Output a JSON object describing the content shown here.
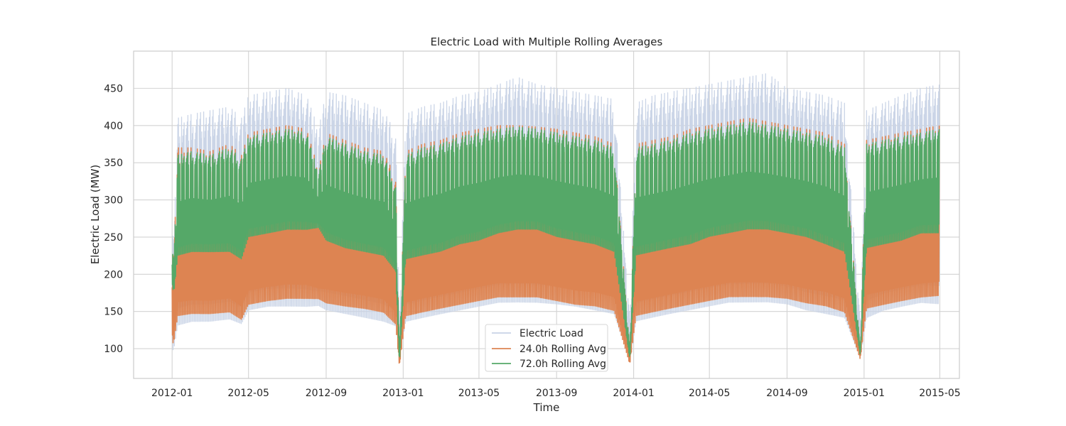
{
  "chart_data": {
    "type": "line",
    "title": "Electric Load with Multiple Rolling Averages",
    "xlabel": "Time",
    "ylabel": "Electric Load (MW)",
    "x_range": [
      "2011-11-01",
      "2015-06-01"
    ],
    "x_ticks": [
      "2012-01",
      "2012-05",
      "2012-09",
      "2013-01",
      "2013-05",
      "2013-09",
      "2014-01",
      "2014-05",
      "2014-09",
      "2015-01",
      "2015-05"
    ],
    "ylim": [
      60,
      500
    ],
    "y_ticks": [
      100,
      150,
      200,
      250,
      300,
      350,
      400,
      450
    ],
    "grid": true,
    "legend_position": "bottom-center",
    "series": [
      {
        "name": "Electric Load",
        "color": "#c8d3e6",
        "envelope": {
          "dates": [
            "2012-01-01",
            "2012-01-04",
            "2012-01-10",
            "2012-02-01",
            "2012-03-01",
            "2012-04-01",
            "2012-04-20",
            "2012-05-01",
            "2012-06-01",
            "2012-07-01",
            "2012-08-01",
            "2012-08-20",
            "2012-09-01",
            "2012-10-01",
            "2012-11-01",
            "2012-12-01",
            "2012-12-20",
            "2012-12-26",
            "2013-01-05",
            "2013-02-01",
            "2013-03-01",
            "2013-04-01",
            "2013-05-01",
            "2013-06-01",
            "2013-07-01",
            "2013-08-01",
            "2013-09-01",
            "2013-10-01",
            "2013-11-01",
            "2013-12-01",
            "2013-12-26",
            "2014-01-05",
            "2014-02-01",
            "2014-03-01",
            "2014-04-01",
            "2014-05-01",
            "2014-06-01",
            "2014-07-01",
            "2014-08-01",
            "2014-09-01",
            "2014-10-01",
            "2014-11-01",
            "2014-12-01",
            "2014-12-26",
            "2015-01-05",
            "2015-02-01",
            "2015-03-01",
            "2015-04-01",
            "2015-04-30"
          ],
          "max": [
            285,
            250,
            410,
            415,
            420,
            425,
            410,
            440,
            445,
            450,
            440,
            395,
            445,
            440,
            430,
            420,
            390,
            130,
            415,
            425,
            430,
            440,
            445,
            455,
            465,
            455,
            450,
            445,
            440,
            435,
            140,
            430,
            440,
            445,
            450,
            455,
            460,
            465,
            470,
            450,
            445,
            440,
            430,
            140,
            420,
            430,
            440,
            450,
            455
          ],
          "min": [
            88,
            95,
            120,
            125,
            125,
            128,
            122,
            140,
            145,
            145,
            145,
            148,
            140,
            135,
            130,
            125,
            120,
            82,
            125,
            130,
            135,
            140,
            145,
            150,
            150,
            150,
            148,
            145,
            140,
            135,
            80,
            125,
            130,
            135,
            140,
            145,
            150,
            150,
            150,
            148,
            140,
            135,
            130,
            85,
            130,
            140,
            145,
            150,
            148
          ]
        }
      },
      {
        "name": "24.0h Rolling Avg",
        "color": "#dd8452",
        "envelope": {
          "dates": [
            "2012-01-01",
            "2012-01-04",
            "2012-01-10",
            "2012-02-01",
            "2012-03-01",
            "2012-04-01",
            "2012-04-20",
            "2012-05-01",
            "2012-06-01",
            "2012-07-01",
            "2012-08-01",
            "2012-08-20",
            "2012-09-01",
            "2012-10-01",
            "2012-11-01",
            "2012-12-01",
            "2012-12-20",
            "2012-12-26",
            "2013-01-05",
            "2013-02-01",
            "2013-03-01",
            "2013-04-01",
            "2013-05-01",
            "2013-06-01",
            "2013-07-01",
            "2013-08-01",
            "2013-09-01",
            "2013-10-01",
            "2013-11-01",
            "2013-12-01",
            "2013-12-26",
            "2014-01-05",
            "2014-02-01",
            "2014-03-01",
            "2014-04-01",
            "2014-05-01",
            "2014-06-01",
            "2014-07-01",
            "2014-08-01",
            "2014-09-01",
            "2014-10-01",
            "2014-11-01",
            "2014-12-01",
            "2014-12-26",
            "2015-01-05",
            "2015-02-01",
            "2015-03-01",
            "2015-04-01",
            "2015-04-30"
          ],
          "max": [
            250,
            230,
            370,
            370,
            365,
            375,
            360,
            390,
            395,
            400,
            395,
            340,
            390,
            380,
            370,
            365,
            330,
            95,
            365,
            375,
            380,
            390,
            395,
            400,
            400,
            398,
            395,
            390,
            385,
            375,
            100,
            375,
            380,
            385,
            395,
            400,
            405,
            410,
            405,
            400,
            395,
            390,
            375,
            100,
            380,
            385,
            390,
            395,
            400
          ],
          "min": [
            100,
            105,
            135,
            138,
            138,
            140,
            130,
            150,
            155,
            158,
            158,
            160,
            152,
            148,
            145,
            140,
            125,
            75,
            135,
            140,
            145,
            150,
            155,
            160,
            160,
            160,
            155,
            150,
            148,
            142,
            78,
            135,
            140,
            145,
            150,
            155,
            160,
            160,
            160,
            158,
            152,
            148,
            140,
            85,
            145,
            150,
            155,
            160,
            162
          ]
        }
      },
      {
        "name": "72.0h Rolling Avg",
        "color": "#55a868",
        "envelope": {
          "dates": [
            "2012-01-01",
            "2012-01-04",
            "2012-01-10",
            "2012-02-01",
            "2012-03-01",
            "2012-04-01",
            "2012-04-20",
            "2012-05-01",
            "2012-06-01",
            "2012-07-01",
            "2012-08-01",
            "2012-08-20",
            "2012-09-01",
            "2012-10-01",
            "2012-11-01",
            "2012-12-01",
            "2012-12-20",
            "2012-12-26",
            "2013-01-05",
            "2013-02-01",
            "2013-03-01",
            "2013-04-01",
            "2013-05-01",
            "2013-06-01",
            "2013-07-01",
            "2013-08-01",
            "2013-09-01",
            "2013-10-01",
            "2013-11-01",
            "2013-12-01",
            "2013-12-26",
            "2014-01-05",
            "2014-02-01",
            "2014-03-01",
            "2014-04-01",
            "2014-05-01",
            "2014-06-01",
            "2014-07-01",
            "2014-08-01",
            "2014-09-01",
            "2014-10-01",
            "2014-11-01",
            "2014-12-01",
            "2014-12-26",
            "2015-01-05",
            "2015-02-01",
            "2015-03-01",
            "2015-04-01",
            "2015-04-30"
          ],
          "max": [
            240,
            220,
            360,
            365,
            360,
            370,
            355,
            385,
            390,
            395,
            390,
            335,
            385,
            375,
            365,
            360,
            320,
            92,
            360,
            370,
            375,
            385,
            390,
            395,
            398,
            395,
            390,
            385,
            380,
            370,
            98,
            370,
            375,
            380,
            390,
            395,
            400,
            405,
            400,
            395,
            390,
            385,
            370,
            98,
            375,
            380,
            385,
            390,
            395
          ],
          "min": [
            180,
            175,
            220,
            225,
            225,
            225,
            215,
            245,
            250,
            255,
            255,
            260,
            240,
            230,
            225,
            220,
            200,
            80,
            215,
            220,
            225,
            235,
            240,
            250,
            255,
            255,
            245,
            240,
            235,
            225,
            85,
            220,
            225,
            230,
            235,
            245,
            250,
            255,
            255,
            250,
            245,
            235,
            225,
            90,
            230,
            235,
            240,
            250,
            250
          ]
        }
      }
    ]
  }
}
